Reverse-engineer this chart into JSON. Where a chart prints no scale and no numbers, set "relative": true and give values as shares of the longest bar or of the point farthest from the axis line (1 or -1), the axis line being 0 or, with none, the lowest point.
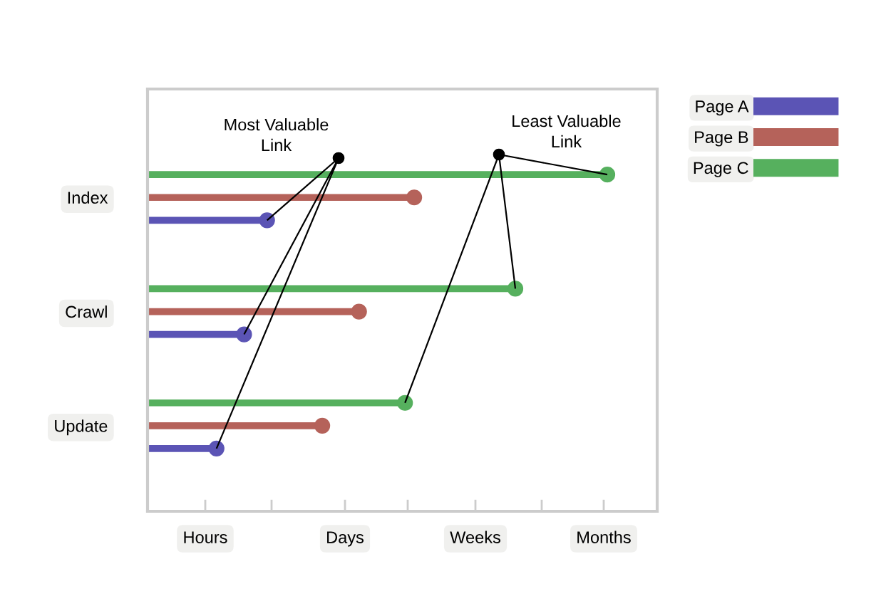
{
  "chart_data": {
    "type": "lollipop",
    "orientation": "horizontal",
    "marker": "circle",
    "relative": true,
    "categories": [
      "Index",
      "Crawl",
      "Update"
    ],
    "series": [
      {
        "name": "Page A",
        "color": "#5b54b5",
        "values": [
          0.26,
          0.21,
          0.15
        ]
      },
      {
        "name": "Page B",
        "color": "#b5625a",
        "values": [
          0.58,
          0.46,
          0.38
        ]
      },
      {
        "name": "Page C",
        "color": "#56b05e",
        "values": [
          1,
          0.8,
          0.56
        ]
      }
    ],
    "annotations": [
      "Most Valuable Link",
      "Least Valuable Link",
      "Hours",
      "Days",
      "Weeks",
      "Months"
    ],
    "legend": "top right",
    "grid": false
  }
}
